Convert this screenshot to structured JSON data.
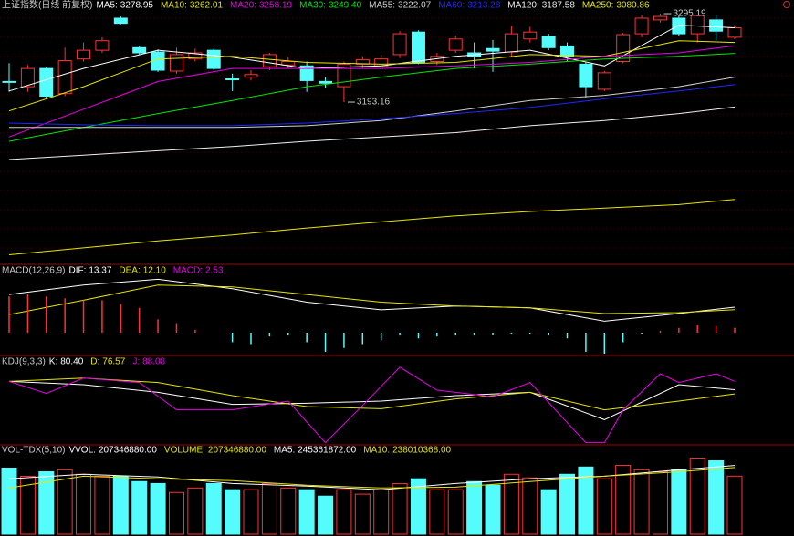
{
  "chart_data": [
    {
      "type": "candlestick",
      "title": "上证指数(日线 前复权)",
      "title_color": "#c8c8c8",
      "up_color": "#ff3232",
      "down_color": "#54fcfc",
      "ylim": [
        3006,
        3311
      ],
      "open": [
        3217,
        3211,
        3232,
        3203,
        3243,
        3253,
        3290,
        3256,
        3251,
        3229,
        3243,
        3253,
        3220,
        3222,
        3234,
        3236,
        3235,
        3217,
        3211,
        3237,
        3235,
        3248,
        3274,
        3240,
        3253,
        3250,
        3255,
        3251,
        3266,
        3269,
        3258,
        3237,
        3208,
        3240,
        3272,
        3288,
        3290,
        3272,
        3288,
        3268
      ],
      "high": [
        3238,
        3236,
        3234,
        3256,
        3262,
        3268,
        3292,
        3258,
        3254,
        3256,
        3255,
        3255,
        3226,
        3230,
        3250,
        3245,
        3240,
        3222,
        3240,
        3246,
        3248,
        3275,
        3276,
        3250,
        3270,
        3262,
        3265,
        3281,
        3280,
        3272,
        3262,
        3240,
        3229,
        3273,
        3293,
        3295.19,
        3294,
        3294,
        3293,
        3282
      ],
      "low": [
        3205,
        3205,
        3198,
        3200,
        3240,
        3250,
        3283,
        3248,
        3228,
        3226,
        3240,
        3230,
        3206,
        3218,
        3230,
        3232,
        3205,
        3210,
        3193.16,
        3232,
        3233,
        3244,
        3237,
        3236,
        3250,
        3232,
        3228,
        3246,
        3262,
        3253,
        3240,
        3198,
        3206,
        3238,
        3268,
        3285,
        3270,
        3262,
        3264,
        3266
      ],
      "close": [
        3216,
        3232,
        3200,
        3241,
        3253,
        3264,
        3284,
        3250,
        3230,
        3248,
        3250,
        3232,
        3219,
        3225,
        3248,
        3240,
        3218,
        3215,
        3237,
        3242,
        3243,
        3272,
        3239,
        3246,
        3266,
        3246,
        3252,
        3272,
        3274,
        3256,
        3246,
        3211,
        3227,
        3271,
        3290,
        3292,
        3272,
        3293,
        3275,
        3278.95
      ],
      "series": [
        {
          "name": "MA5:",
          "color": "#ffffff",
          "x": [
            0,
            4,
            8,
            12,
            16,
            20,
            24,
            28,
            32,
            36,
            39
          ],
          "values": [
            3206,
            3232,
            3253,
            3245,
            3232,
            3235,
            3246,
            3253,
            3235,
            3282,
            3278.95
          ]
        },
        {
          "name": "MA10:",
          "color": "#e6e600",
          "x": [
            0,
            4,
            8,
            12,
            16,
            20,
            24,
            28,
            32,
            36,
            39
          ],
          "values": [
            3183,
            3211,
            3243,
            3246,
            3239,
            3237,
            3239,
            3248,
            3246,
            3264,
            3262.01
          ]
        },
        {
          "name": "MA20:",
          "color": "#e600e6",
          "x": [
            0,
            4,
            8,
            12,
            16,
            20,
            24,
            28,
            32,
            36,
            39
          ],
          "values": [
            3153,
            3185,
            3217,
            3232,
            3232,
            3232,
            3235,
            3239,
            3246,
            3250,
            3258.19
          ]
        },
        {
          "name": "MA30:",
          "color": "#00e600",
          "x": [
            0,
            4,
            8,
            12,
            16,
            20,
            24,
            28,
            32,
            36,
            39
          ],
          "values": [
            3148,
            3164,
            3180,
            3195,
            3211,
            3222,
            3232,
            3237,
            3243,
            3246,
            3249.4
          ],
          "value_label": "3249.40"
        },
        {
          "name": "MA55:",
          "color": "#d0d0d0",
          "x": [
            0,
            4,
            8,
            12,
            16,
            20,
            24,
            28,
            32,
            36,
            39
          ],
          "values": [
            3164,
            3164,
            3164,
            3164,
            3166,
            3172,
            3183,
            3195,
            3201,
            3211,
            3222.07
          ]
        },
        {
          "name": "MA60:",
          "color": "#1e28ff",
          "x": [
            0,
            4,
            8,
            12,
            16,
            20,
            24,
            28,
            32,
            36,
            39
          ],
          "values": [
            3169,
            3167,
            3166,
            3166,
            3169,
            3174,
            3180,
            3187,
            3197,
            3206,
            3213.28
          ]
        },
        {
          "name": "MA120:",
          "color": "#f0f0f0",
          "x": [
            0,
            4,
            8,
            12,
            16,
            20,
            24,
            28,
            32,
            36,
            39
          ],
          "values": [
            3127,
            3132,
            3137,
            3142,
            3148,
            3153,
            3158,
            3166,
            3172,
            3180,
            3187.58
          ]
        },
        {
          "name": "MA250:",
          "color": "#e6e600",
          "x": [
            0,
            4,
            8,
            12,
            16,
            20,
            24,
            28,
            32,
            36,
            39
          ],
          "values": [
            3017,
            3025,
            3033,
            3040,
            3048,
            3055,
            3062,
            3067,
            3071,
            3075,
            3080.86
          ]
        }
      ]
    },
    {
      "type": "macd",
      "title": "MACD(12,26,9)",
      "title_color": "#c8c8c8",
      "ylim": [
        -11,
        32
      ],
      "series": [
        {
          "name": "DIF:",
          "color": "#ffffff",
          "x": [
            0,
            4,
            8,
            12,
            16,
            20,
            24,
            28,
            32,
            36,
            39
          ],
          "values": [
            20,
            25,
            28,
            23,
            16,
            12,
            14,
            13,
            6,
            10,
            13.37
          ]
        },
        {
          "name": "DEA:",
          "color": "#e6e600",
          "x": [
            0,
            4,
            8,
            12,
            16,
            20,
            24,
            28,
            32,
            36,
            39
          ],
          "values": [
            9.5,
            17,
            25,
            24,
            20,
            16,
            14,
            13,
            10,
            10.5,
            12.1
          ],
          "value_label": "12.10"
        },
        {
          "name": "MACD:",
          "color": "#e600e6",
          "values": [
            19,
            20,
            19,
            18,
            17,
            17,
            15,
            13,
            7,
            5,
            1.5,
            0,
            -5,
            -6,
            -2,
            -1.5,
            -5,
            -10,
            -8,
            -6,
            -4,
            -1.5,
            -3,
            -2,
            -1.5,
            -1.5,
            -1,
            -0.5,
            -0.5,
            -1.5,
            -3,
            -10,
            -11,
            -5,
            -0.5,
            1,
            2.5,
            4,
            3.5,
            2.53
          ]
        }
      ]
    },
    {
      "type": "kdj",
      "title": "KDJ(9,3,3)",
      "title_color": "#c8c8c8",
      "ylim": [
        30,
        110
      ],
      "series": [
        {
          "name": "K:",
          "color": "#ffffff",
          "x": [
            0,
            4,
            8,
            12,
            16,
            20,
            24,
            28,
            32,
            36,
            39
          ],
          "values": [
            88,
            85,
            78,
            67,
            68,
            70,
            75,
            78,
            53,
            85,
            80.4
          ],
          "value_label": "80.40"
        },
        {
          "name": "D:",
          "color": "#e6e600",
          "x": [
            0,
            4,
            8,
            12,
            16,
            20,
            24,
            28,
            32,
            36,
            39
          ],
          "values": [
            88,
            91,
            87,
            75,
            65,
            63,
            72,
            78,
            62,
            70,
            76.57
          ]
        },
        {
          "name": "J:",
          "color": "#e600e6",
          "x": [
            0,
            2,
            4,
            7,
            9,
            12,
            15,
            17,
            19,
            21,
            23,
            26,
            28,
            31,
            32,
            33,
            35,
            36,
            38,
            39
          ],
          "values": [
            88,
            77,
            91,
            87,
            62,
            62,
            70,
            32,
            66,
            101,
            80,
            74,
            87,
            32,
            32,
            62,
            95,
            87,
            95,
            88.08
          ]
        }
      ]
    },
    {
      "type": "volume",
      "title": "VOL-TDX(5,10)",
      "title_color": "#c8c8c8",
      "ylim": [
        0,
        280000000
      ],
      "series": [
        {
          "name": "VVOL:",
          "color": "#ffffff",
          "value_label": "207346880.00"
        },
        {
          "name": "VOLUME:",
          "color": "#e6e600",
          "values": [
            236000000,
            207000000,
            223000000,
            230000000,
            214000000,
            207000000,
            207000000,
            188000000,
            181000000,
            149000000,
            165000000,
            181000000,
            159000000,
            159000000,
            181000000,
            165000000,
            159000000,
            136000000,
            159000000,
            143000000,
            159000000,
            181000000,
            198000000,
            159000000,
            159000000,
            188000000,
            175000000,
            214000000,
            201000000,
            159000000,
            214000000,
            240000000,
            198000000,
            246000000,
            230000000,
            223000000,
            230000000,
            272000000,
            262000000,
            207346880
          ],
          "value_label": "207346880.00"
        },
        {
          "name": "MA5:",
          "color": "#ffffff",
          "x": [
            0,
            4,
            8,
            12,
            16,
            20,
            24,
            28,
            32,
            36,
            39
          ],
          "values": [
            198000000,
            214000000,
            204000000,
            181000000,
            172000000,
            159000000,
            181000000,
            198000000,
            207000000,
            230000000,
            245361872
          ],
          "value_label": "245361872.00"
        },
        {
          "name": "MA10:",
          "color": "#e6e600",
          "x": [
            0,
            4,
            8,
            12,
            16,
            20,
            24,
            28,
            32,
            36,
            39
          ],
          "values": [
            165000000,
            207000000,
            198000000,
            191000000,
            175000000,
            165000000,
            168000000,
            188000000,
            207000000,
            223000000,
            238010368
          ],
          "value_label": "238010368.00"
        }
      ]
    }
  ]
}
